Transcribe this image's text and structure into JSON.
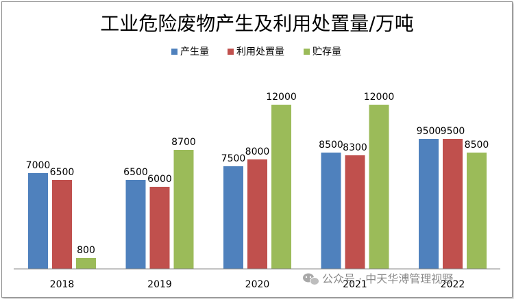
{
  "chart_data": {
    "type": "bar",
    "title": "工业危险废物产生及利用处置量/万吨",
    "categories": [
      "2018",
      "2019",
      "2020",
      "2021",
      "2022"
    ],
    "series": [
      {
        "name": "产生量",
        "color": "#4F81BD",
        "values": [
          7000,
          6500,
          7500,
          8500,
          9500
        ]
      },
      {
        "name": "利用处置量",
        "color": "#C0504D",
        "values": [
          6500,
          6000,
          8000,
          8300,
          9500
        ]
      },
      {
        "name": "贮存量",
        "color": "#9BBB59",
        "values": [
          800,
          8700,
          12000,
          12000,
          8500
        ]
      }
    ],
    "ylim": [
      0,
      12000
    ],
    "grid": false,
    "legend_position": "top"
  },
  "watermark": {
    "icon": "wechat-icon",
    "text": "公众号 · 中天华溥管理视野"
  }
}
